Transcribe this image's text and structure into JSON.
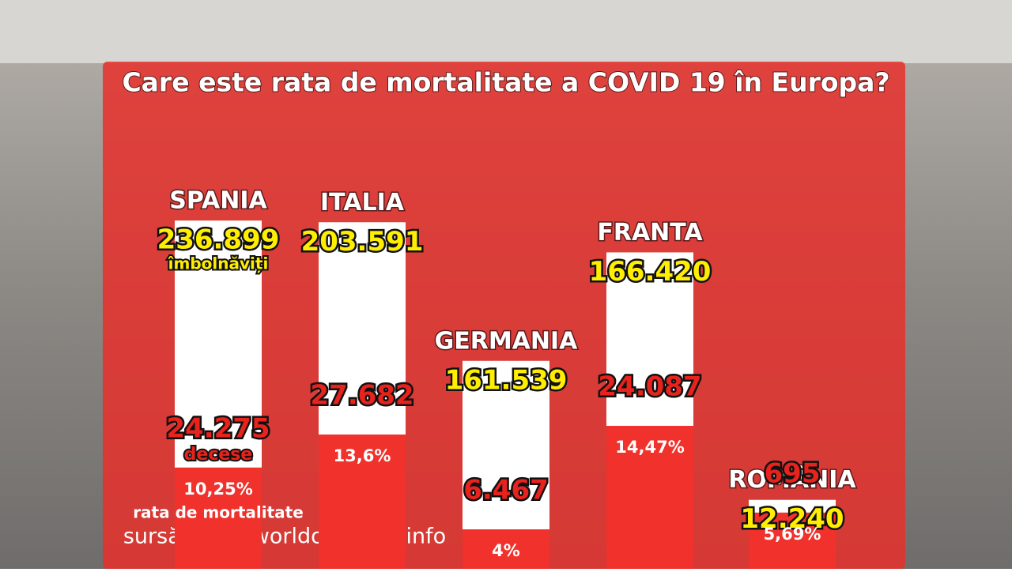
{
  "chart_data": {
    "type": "bar",
    "title": "Care este rata de mortalitate a COVID 19 în Europa?",
    "source": "sursă: www.worldometers.info",
    "categories": [
      "SPANIA",
      "ITALIA",
      "GERMANIA",
      "FRANTA",
      "ROMÂNIA"
    ],
    "series": [
      {
        "name": "îmbolnăviți",
        "color": "#ffffff",
        "values": [
          236899,
          203591,
          161539,
          166420,
          12240
        ],
        "value_labels": [
          "236.899",
          "203.591",
          "161.539",
          "166.420",
          "12.240"
        ]
      },
      {
        "name": "decese",
        "values": [
          24275,
          27682,
          6467,
          24087,
          695
        ],
        "value_labels": [
          "24.275",
          "27.682",
          "6.467",
          "24.087",
          "695"
        ]
      },
      {
        "name": "rata de mortalitate",
        "color": "#f0312c",
        "axis": "y2",
        "values": [
          10.25,
          13.6,
          4,
          14.47,
          5.69
        ],
        "value_labels": [
          "10,25%",
          "13,6%",
          "4%",
          "14,47%",
          "5,69%"
        ]
      }
    ],
    "ylim": [
      0,
      250000
    ],
    "y2lim": [
      0,
      16
    ]
  }
}
